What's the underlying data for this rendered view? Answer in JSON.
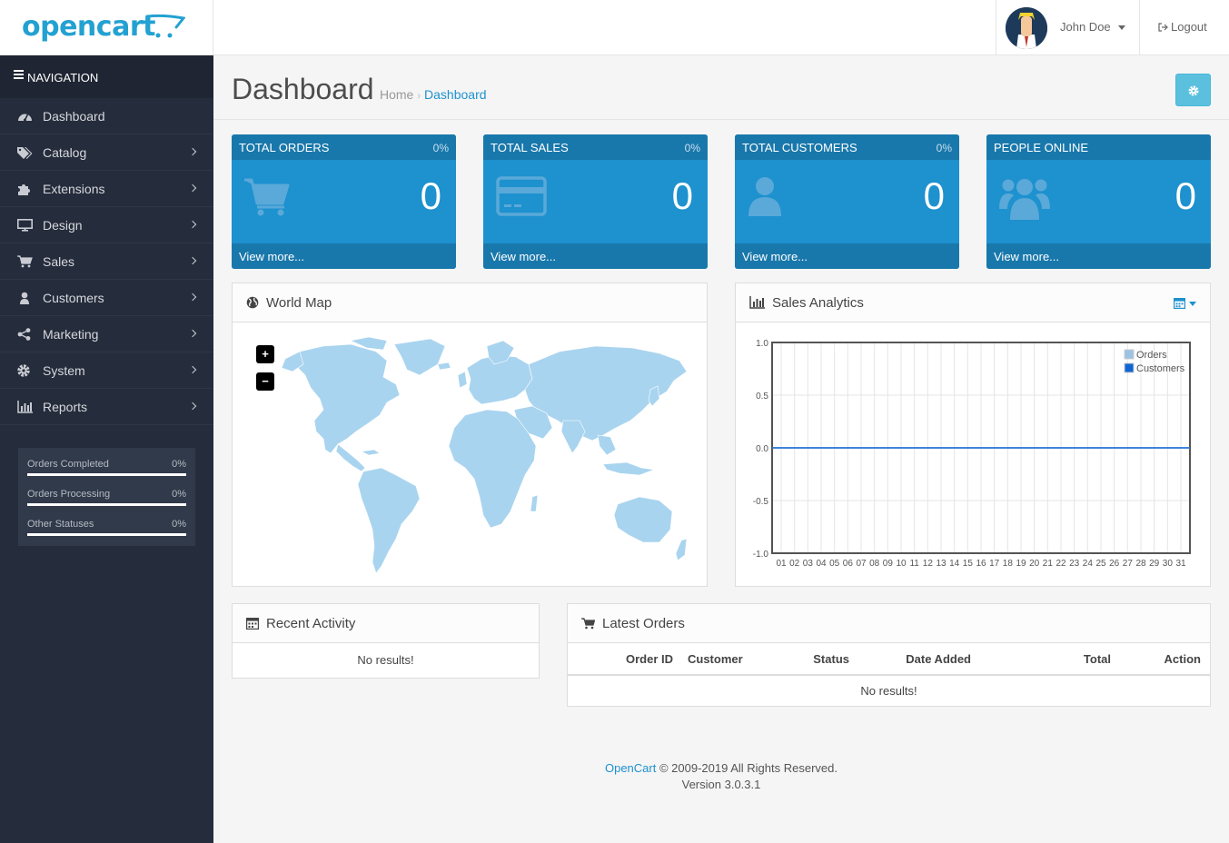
{
  "header": {
    "logo_text": "opencart",
    "user_name": "John Doe",
    "logout_label": "Logout"
  },
  "sidebar": {
    "title": "NAVIGATION",
    "items": [
      {
        "label": "Dashboard",
        "icon": "dashboard-icon",
        "has_children": false
      },
      {
        "label": "Catalog",
        "icon": "tags-icon",
        "has_children": true
      },
      {
        "label": "Extensions",
        "icon": "puzzle-icon",
        "has_children": true
      },
      {
        "label": "Design",
        "icon": "monitor-icon",
        "has_children": true
      },
      {
        "label": "Sales",
        "icon": "cart-icon",
        "has_children": true
      },
      {
        "label": "Customers",
        "icon": "user-icon",
        "has_children": true
      },
      {
        "label": "Marketing",
        "icon": "share-icon",
        "has_children": true
      },
      {
        "label": "System",
        "icon": "cog-icon",
        "has_children": true
      },
      {
        "label": "Reports",
        "icon": "bar-chart-icon",
        "has_children": true
      }
    ],
    "stats": [
      {
        "label": "Orders Completed",
        "value": "0%"
      },
      {
        "label": "Orders Processing",
        "value": "0%"
      },
      {
        "label": "Other Statuses",
        "value": "0%"
      }
    ]
  },
  "page": {
    "title": "Dashboard",
    "breadcrumb": [
      "Home",
      "Dashboard"
    ]
  },
  "tiles": [
    {
      "title": "TOTAL ORDERS",
      "percent": "0%",
      "value": "0",
      "footer": "View more...",
      "icon": "shopping-cart-icon"
    },
    {
      "title": "TOTAL SALES",
      "percent": "0%",
      "value": "0",
      "footer": "View more...",
      "icon": "credit-card-icon"
    },
    {
      "title": "TOTAL CUSTOMERS",
      "percent": "0%",
      "value": "0",
      "footer": "View more...",
      "icon": "user-icon"
    },
    {
      "title": "PEOPLE ONLINE",
      "percent": "",
      "value": "0",
      "footer": "View more...",
      "icon": "users-icon"
    }
  ],
  "world_map": {
    "title": "World Map",
    "zoom_in": "+",
    "zoom_out": "−"
  },
  "sales_analytics": {
    "title": "Sales Analytics"
  },
  "chart_data": {
    "type": "line",
    "title": "",
    "x": [
      "01",
      "02",
      "03",
      "04",
      "05",
      "06",
      "07",
      "08",
      "09",
      "10",
      "11",
      "12",
      "13",
      "14",
      "15",
      "16",
      "17",
      "18",
      "19",
      "20",
      "21",
      "22",
      "23",
      "24",
      "25",
      "26",
      "27",
      "28",
      "29",
      "30",
      "31"
    ],
    "yticks": [
      "1.0",
      "0.5",
      "0.0",
      "-0.5",
      "-1.0"
    ],
    "ylim": [
      -1,
      1
    ],
    "series": [
      {
        "name": "Orders",
        "color": "#9cc2e3",
        "values": [
          0,
          0,
          0,
          0,
          0,
          0,
          0,
          0,
          0,
          0,
          0,
          0,
          0,
          0,
          0,
          0,
          0,
          0,
          0,
          0,
          0,
          0,
          0,
          0,
          0,
          0,
          0,
          0,
          0,
          0,
          0
        ]
      },
      {
        "name": "Customers",
        "color": "#1065d2",
        "values": [
          0,
          0,
          0,
          0,
          0,
          0,
          0,
          0,
          0,
          0,
          0,
          0,
          0,
          0,
          0,
          0,
          0,
          0,
          0,
          0,
          0,
          0,
          0,
          0,
          0,
          0,
          0,
          0,
          0,
          0,
          0
        ]
      }
    ],
    "legend": "top-right",
    "grid": true
  },
  "recent_activity": {
    "title": "Recent Activity",
    "empty": "No results!"
  },
  "latest_orders": {
    "title": "Latest Orders",
    "columns": [
      "Order ID",
      "Customer",
      "Status",
      "Date Added",
      "Total",
      "Action"
    ],
    "empty": "No results!"
  },
  "footer": {
    "link": "OpenCart",
    "copyright": " © 2009-2019 All Rights Reserved.",
    "version": "Version 3.0.3.1"
  },
  "colors": {
    "primary": "#1e91cf",
    "sidebar": "#252c3b",
    "tile_dark": "#1978ab",
    "info_button": "#5bc0de"
  }
}
